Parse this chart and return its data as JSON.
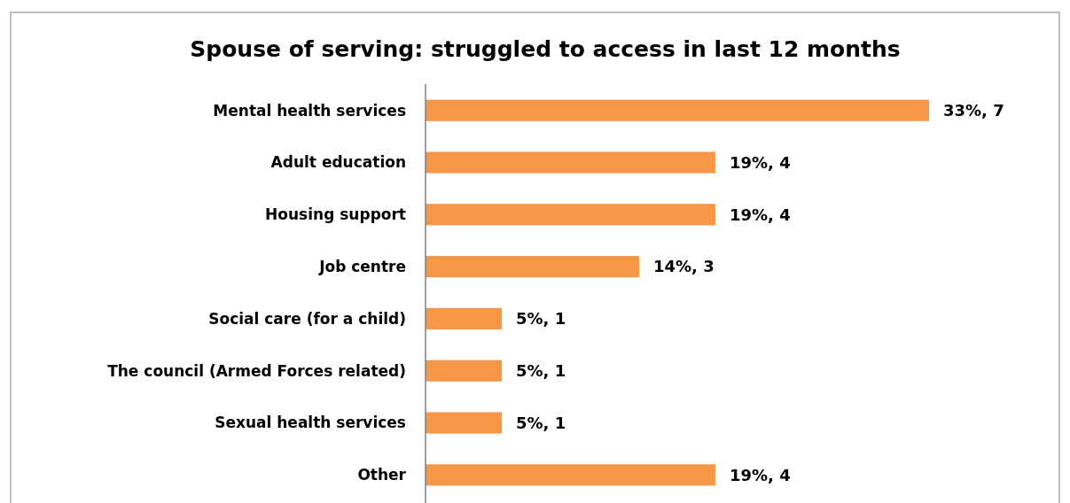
{
  "chart_data": {
    "type": "bar",
    "orientation": "horizontal",
    "title": "Spouse of serving: struggled to access in last 12 months",
    "categories": [
      "Mental health services",
      "Adult education",
      "Housing support",
      "Job centre",
      "Social care (for a child)",
      "The council (Armed Forces related)",
      "Sexual health services",
      "Other"
    ],
    "values": [
      33,
      19,
      19,
      14,
      5,
      5,
      5,
      19
    ],
    "value_labels": [
      "33%, 7",
      "19%, 4",
      "19%, 4",
      "14%, 3",
      "5%, 1",
      "5%, 1",
      "5%, 1",
      "19%, 4"
    ],
    "color": "#f79646"
  }
}
